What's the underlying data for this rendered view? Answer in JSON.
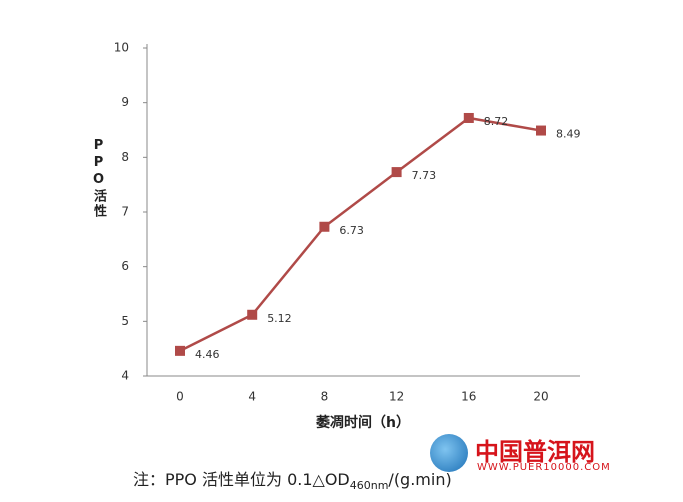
{
  "chart_data": {
    "type": "line",
    "y_label": "PPO活性",
    "x_label": "萎凋时间（h）",
    "categories": [
      "0",
      "4",
      "8",
      "12",
      "16",
      "20"
    ],
    "series": [
      {
        "color": "#b04a48",
        "values": [
          4.46,
          5.12,
          6.73,
          7.73,
          8.72,
          8.49
        ]
      }
    ],
    "ylim": [
      4,
      10
    ],
    "yticks": [
      4,
      5,
      6,
      7,
      8,
      9,
      10
    ],
    "note": {
      "prefix": "注：PPO 活性单位为 0.1△OD",
      "subscript": "460nm",
      "suffix": "/(g.min)"
    },
    "watermark": {
      "title": "中国普洱网",
      "url": "WWW.PUER10000.COM"
    }
  }
}
